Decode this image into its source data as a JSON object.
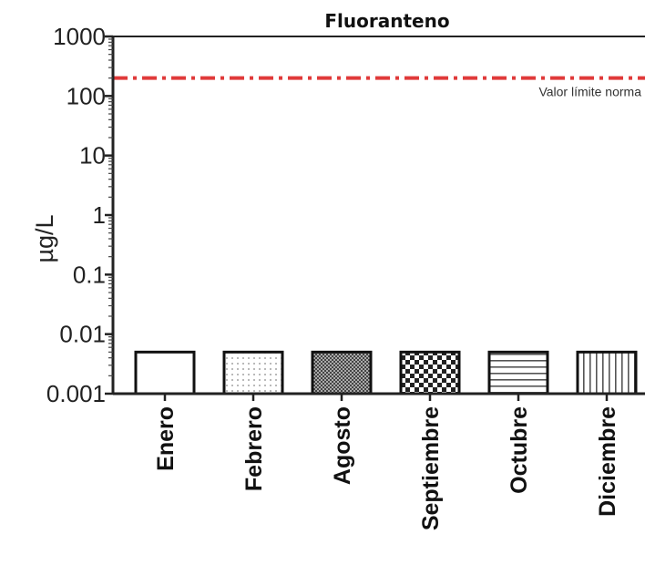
{
  "chart_data": {
    "type": "bar",
    "title": "Fluoranteno",
    "ylabel": "µg/L",
    "xlabel": "",
    "yscale": "log",
    "ylim": [
      0.001,
      1000
    ],
    "yticks": [
      {
        "value": 1000,
        "label": "1000"
      },
      {
        "value": 100,
        "label": "100"
      },
      {
        "value": 10,
        "label": "10"
      },
      {
        "value": 1,
        "label": "1"
      },
      {
        "value": 0.1,
        "label": "0.1"
      },
      {
        "value": 0.01,
        "label": "0.01"
      },
      {
        "value": 0.001,
        "label": "0.001"
      }
    ],
    "categories": [
      "Enero",
      "Febrero",
      "Agosto",
      "Septiembre",
      "Octubre",
      "Diciembre"
    ],
    "values": [
      0.005,
      0.005,
      0.005,
      0.005,
      0.005,
      0.005
    ],
    "patterns": [
      "none",
      "dots",
      "dense-grid",
      "checker",
      "horizontal-lines",
      "vertical-lines"
    ],
    "reference_line": {
      "value": 200,
      "label": "Valor límite norma",
      "color": "#e03a3a",
      "style": "dash-dot"
    },
    "grid": false
  }
}
